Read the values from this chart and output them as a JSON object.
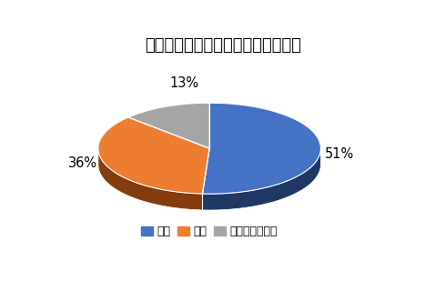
{
  "title": "ハリアーのインテリア・満足度調査",
  "labels": [
    "満足",
    "不満",
    "どちらでもない"
  ],
  "values": [
    51,
    36,
    13
  ],
  "colors": [
    "#4472C4",
    "#ED7D31",
    "#A5A5A5"
  ],
  "dark_colors": [
    "#1F3864",
    "#843C0C",
    "#595959"
  ],
  "pct_labels": [
    "51%",
    "36%",
    "13%"
  ],
  "start_angle": 90,
  "title_fontsize": 13,
  "legend_fontsize": 9
}
